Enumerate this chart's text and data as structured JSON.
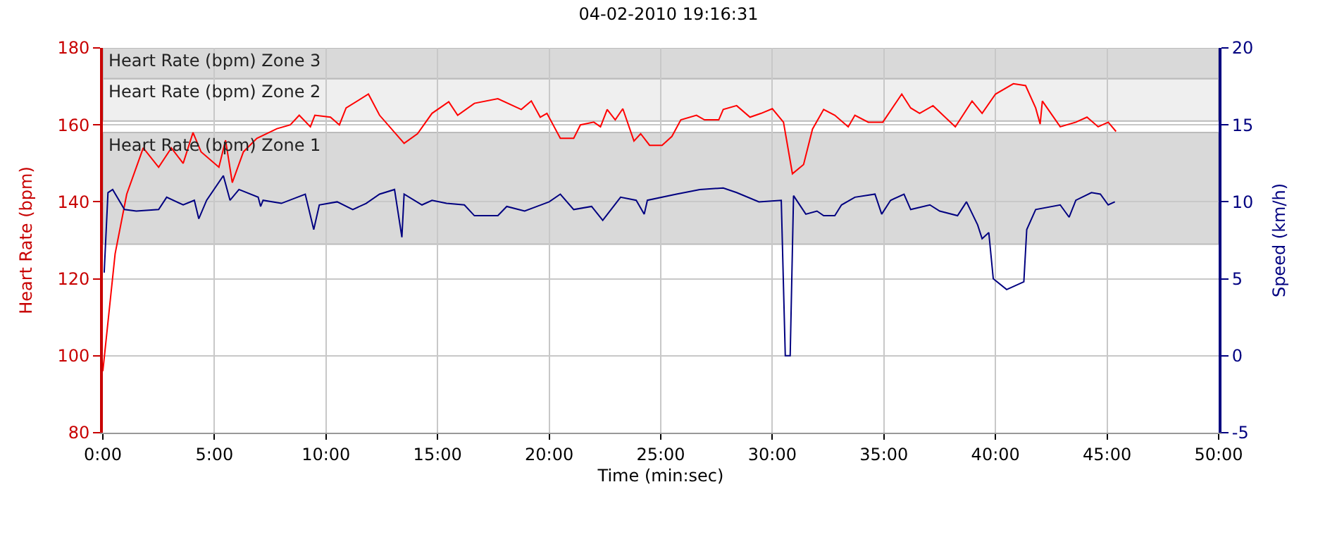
{
  "chart_data": {
    "type": "line",
    "title": "04-02-2010 19:16:31",
    "xlabel": "Time (min:sec)",
    "ylabel": "Heart Rate (bpm)",
    "y2label": "Speed (km/h)",
    "xlim": [
      0,
      50
    ],
    "xticks": [
      {
        "value": 0,
        "label": "0:00"
      },
      {
        "value": 5,
        "label": "5:00"
      },
      {
        "value": 10,
        "label": "10:00"
      },
      {
        "value": 15,
        "label": "15:00"
      },
      {
        "value": 20,
        "label": "20:00"
      },
      {
        "value": 25,
        "label": "25:00"
      },
      {
        "value": 30,
        "label": "30:00"
      },
      {
        "value": 35,
        "label": "35:00"
      },
      {
        "value": 40,
        "label": "40:00"
      },
      {
        "value": 45,
        "label": "45:00"
      },
      {
        "value": 50,
        "label": "50:00"
      }
    ],
    "ylim": [
      80,
      180
    ],
    "yticks": [
      80,
      100,
      120,
      140,
      160,
      180
    ],
    "y2lim": [
      -5,
      20
    ],
    "y2ticks": [
      -5,
      0,
      5,
      10,
      15,
      20
    ],
    "grid": true,
    "marker": "none",
    "line_style": "solid",
    "bands": [
      {
        "axis": "y",
        "from": 172,
        "to": 180,
        "label": "Heart Rate (bpm) Zone 3",
        "color": "#d9d9d9"
      },
      {
        "axis": "y",
        "from": 161,
        "to": 172,
        "label": "Heart Rate (bpm) Zone 2",
        "color": "#efefef"
      },
      {
        "axis": "y",
        "from": 129,
        "to": 158,
        "label": "Heart Rate (bpm) Zone 1",
        "color": "#d9d9d9"
      }
    ],
    "series": [
      {
        "color": "#ff0000",
        "axis": "y",
        "x": [
          0,
          0.55,
          1.07,
          1.81,
          2.5,
          3.07,
          3.6,
          4.04,
          4.4,
          5.2,
          5.5,
          5.8,
          6.3,
          6.9,
          7.8,
          8.4,
          8.8,
          9.3,
          9.5,
          10.2,
          10.6,
          10.9,
          11.9,
          12.4,
          13.5,
          14.1,
          14.75,
          15.5,
          15.9,
          16.65,
          17.7,
          18.75,
          19.2,
          19.6,
          19.9,
          20.5,
          21.1,
          21.4,
          22,
          22.3,
          22.6,
          22.96,
          23.3,
          23.8,
          24.1,
          24.5,
          25.06,
          25.5,
          25.9,
          26.6,
          26.96,
          27.6,
          27.8,
          28.4,
          29.0,
          29.5,
          30.0,
          30.5,
          30.9,
          31.4,
          31.8,
          32.3,
          32.8,
          33.4,
          33.7,
          34.3,
          34.95,
          35.8,
          36.2,
          36.6,
          37.2,
          38.2,
          38.95,
          39.4,
          40,
          40.8,
          41.35,
          41.8,
          42,
          42.1,
          42.9,
          43.6,
          44.1,
          44.6,
          45.05,
          45.4
        ],
        "values": [
          96,
          126.5,
          142,
          154,
          149,
          154,
          150,
          158,
          153,
          149,
          156,
          145,
          153,
          156.5,
          159,
          160,
          162.5,
          159.5,
          162.5,
          162,
          160,
          164.4,
          168,
          162.5,
          155.2,
          157.7,
          163,
          166,
          162.5,
          165.6,
          166.8,
          164,
          166.2,
          162,
          163,
          156.5,
          156.5,
          160,
          160.7,
          159.5,
          164,
          161.3,
          164.2,
          155.8,
          157.7,
          154.7,
          154.7,
          157,
          161.3,
          162.5,
          161.3,
          161.3,
          164,
          165,
          162,
          163,
          164.2,
          160.7,
          147.3,
          149.7,
          158.9,
          164,
          162.5,
          159.5,
          162.5,
          160.7,
          160.7,
          168,
          164.4,
          163,
          165,
          159.5,
          166.2,
          163,
          168,
          170.7,
          170.2,
          164.4,
          160.2,
          166.2,
          159.5,
          160.7,
          162,
          159.5,
          160.7,
          158.3
        ]
      },
      {
        "color": "#000080",
        "axis": "y2",
        "x": [
          0.06,
          0.23,
          0.44,
          0.97,
          1.5,
          2.5,
          2.86,
          3.6,
          4.1,
          4.3,
          4.65,
          5.4,
          5.7,
          6.1,
          6.96,
          7.07,
          7.18,
          8.0,
          9.07,
          9.45,
          9.7,
          10.5,
          11.2,
          11.8,
          12.4,
          13.07,
          13.4,
          13.5,
          14.3,
          14.75,
          15.4,
          16.2,
          16.65,
          17.7,
          18.1,
          18.9,
          20.0,
          20.5,
          21.1,
          21.9,
          22.4,
          23.2,
          23.9,
          24.26,
          24.4,
          25.7,
          26.75,
          27.8,
          28.4,
          29.4,
          30.4,
          30.58,
          30.8,
          30.95,
          31.5,
          32.0,
          32.3,
          32.8,
          33.1,
          33.7,
          34.6,
          34.9,
          35.3,
          35.9,
          36.2,
          37.06,
          37.5,
          38.3,
          38.7,
          39.2,
          39.4,
          39.7,
          39.9,
          40.5,
          41.27,
          41.4,
          41.8,
          42.9,
          43.3,
          43.6,
          44.3,
          44.7,
          45.05,
          45.35
        ],
        "values": [
          5.4,
          10.6,
          10.8,
          9.5,
          9.4,
          9.5,
          10.3,
          9.8,
          10.1,
          8.9,
          10.1,
          11.7,
          10.1,
          10.8,
          10.3,
          9.7,
          10.1,
          9.9,
          10.5,
          8.2,
          9.8,
          10.0,
          9.5,
          9.9,
          10.5,
          10.8,
          7.7,
          10.5,
          9.8,
          10.1,
          9.9,
          9.8,
          9.1,
          9.1,
          9.7,
          9.4,
          10.0,
          10.5,
          9.5,
          9.7,
          8.8,
          10.3,
          10.1,
          9.2,
          10.1,
          10.5,
          10.8,
          10.9,
          10.6,
          10.0,
          10.1,
          0,
          0,
          10.4,
          9.2,
          9.4,
          9.1,
          9.1,
          9.8,
          10.3,
          10.5,
          9.2,
          10.1,
          10.5,
          9.5,
          9.8,
          9.4,
          9.1,
          10.0,
          8.5,
          7.6,
          8.0,
          5.0,
          4.3,
          4.8,
          8.2,
          9.5,
          9.8,
          9.0,
          10.1,
          10.6,
          10.5,
          9.8,
          10.0
        ]
      }
    ]
  }
}
